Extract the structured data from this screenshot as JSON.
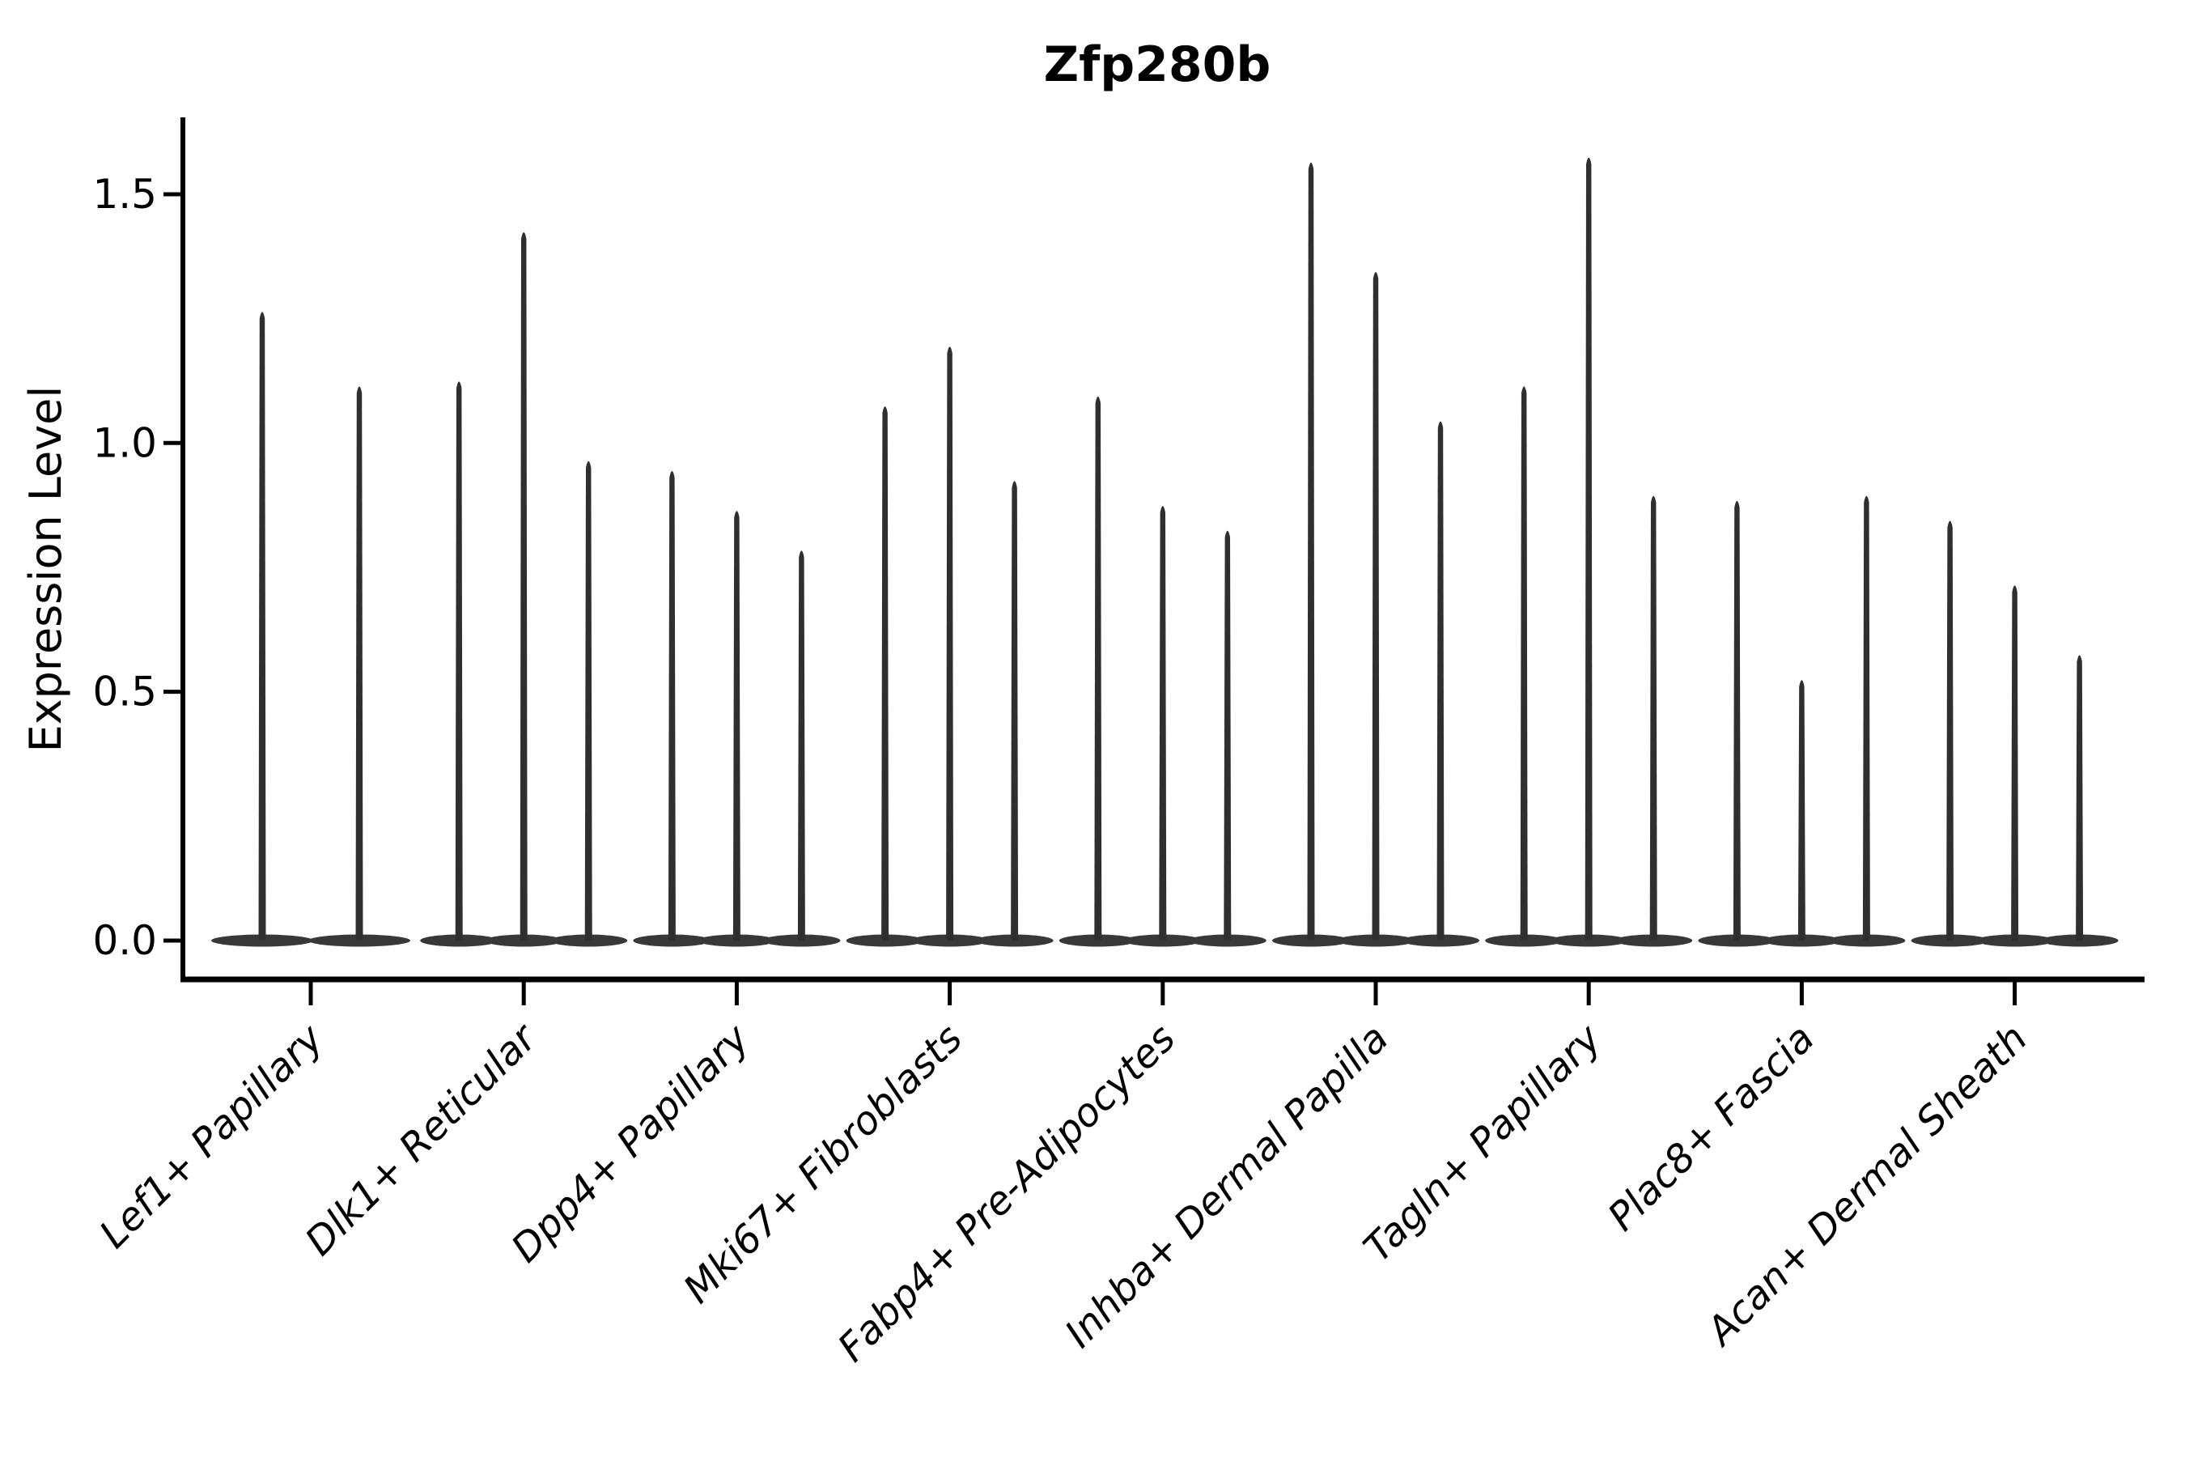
{
  "chart_data": {
    "type": "violin",
    "title": "Zfp280b",
    "ylabel": "Expression Level",
    "xlabel": "",
    "ytick_labels": [
      "0.0",
      "0.5",
      "1.0",
      "1.5"
    ],
    "ytick_values": [
      0.0,
      0.5,
      1.0,
      1.5
    ],
    "ylim": [
      -0.08,
      1.66
    ],
    "grid": false,
    "legend": false,
    "x_tick_rotation_deg": 45,
    "violin_color": "#333333",
    "axis_color": "#000000",
    "categories": [
      {
        "label": "Lef1+ Papillary",
        "violin_max_expression": [
          1.27,
          1.12
        ]
      },
      {
        "label": "Dlk1+ Reticular",
        "violin_max_expression": [
          1.13,
          1.43,
          0.97
        ]
      },
      {
        "label": "Dpp4+ Papillary",
        "violin_max_expression": [
          0.95,
          0.87,
          0.79
        ]
      },
      {
        "label": "Mki67+ Fibroblasts",
        "violin_max_expression": [
          1.08,
          1.2,
          0.93
        ]
      },
      {
        "label": "Fabp4+ Pre-Adipocytes",
        "violin_max_expression": [
          1.1,
          0.88,
          0.83
        ]
      },
      {
        "label": "Inhba+ Dermal Papilla",
        "violin_max_expression": [
          1.57,
          1.35,
          1.05
        ]
      },
      {
        "label": "Tagln+ Papillary",
        "violin_max_expression": [
          1.12,
          1.58,
          0.9
        ]
      },
      {
        "label": "Plac8+ Fascia",
        "violin_max_expression": [
          0.89,
          0.53,
          0.9
        ]
      },
      {
        "label": "Acan+ Dermal Sheath",
        "violin_max_expression": [
          0.85,
          0.72,
          0.58
        ]
      }
    ]
  }
}
